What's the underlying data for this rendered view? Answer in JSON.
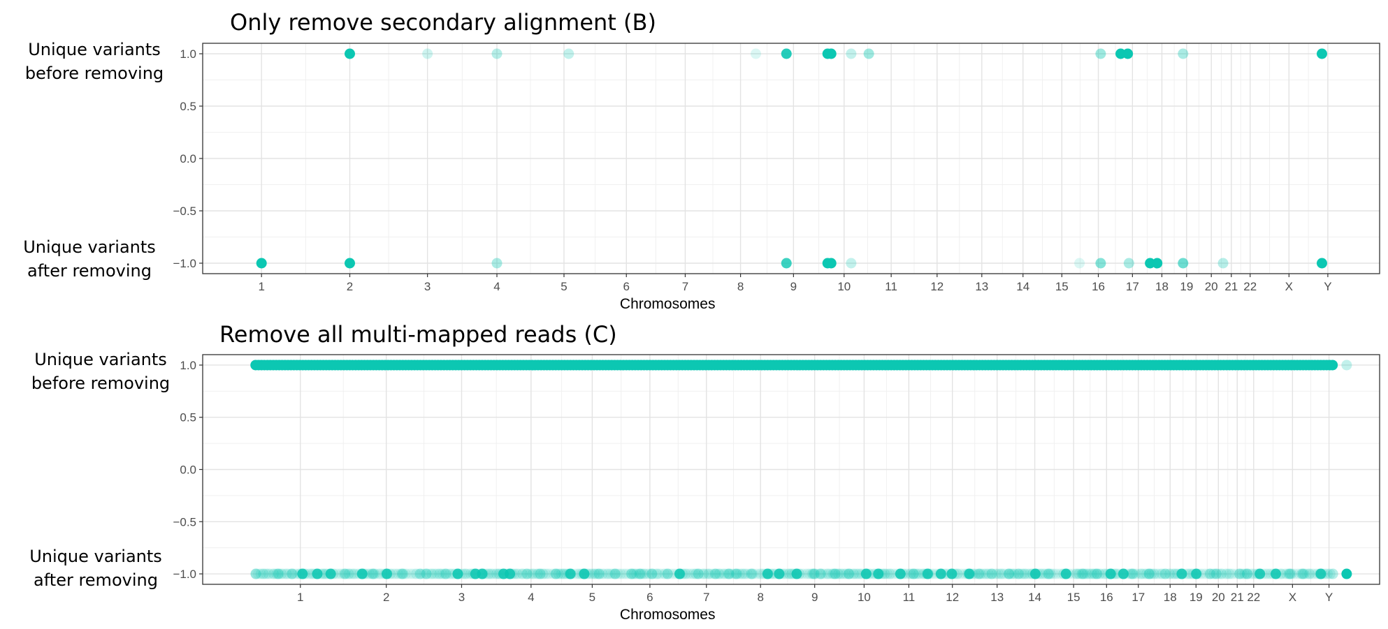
{
  "chart_data": [
    {
      "type": "scatter",
      "title": "Only remove secondary alignment (B)",
      "xlabel": "Chromosomes",
      "ylabel_top": [
        "Unique variants",
        "before removing"
      ],
      "ylabel_bottom": [
        "Unique variants",
        "after removing"
      ],
      "ylim": [
        -1.1,
        1.1
      ],
      "yticks": [
        "1.0",
        "0.5",
        "0.0",
        "−0.5",
        "−1.0"
      ],
      "ytick_values": [
        1.0,
        0.5,
        0.0,
        -0.5,
        -1.0
      ],
      "xticks": [
        "1",
        "2",
        "3",
        "4",
        "5",
        "6",
        "7",
        "8",
        "9",
        "10",
        "11",
        "12",
        "13",
        "14",
        "15",
        "16",
        "17",
        "18",
        "19",
        "20",
        "21",
        "22",
        "X",
        "Y"
      ],
      "xtick_values": [
        0.05,
        0.125,
        0.191,
        0.25,
        0.307,
        0.36,
        0.41,
        0.457,
        0.502,
        0.545,
        0.585,
        0.624,
        0.662,
        0.697,
        0.73,
        0.761,
        0.79,
        0.815,
        0.836,
        0.857,
        0.874,
        0.89,
        0.923,
        0.956
      ],
      "grid": true,
      "point_color": "#0cc7b2",
      "series": [
        {
          "y": 1,
          "points": [
            [
              0.125,
              1.0
            ],
            [
              0.191,
              0.2
            ],
            [
              0.25,
              0.3
            ],
            [
              0.311,
              0.25
            ],
            [
              0.47,
              0.15
            ],
            [
              0.496,
              0.9
            ],
            [
              0.531,
              1.0
            ],
            [
              0.534,
              1.0
            ],
            [
              0.551,
              0.25
            ],
            [
              0.566,
              0.4
            ],
            [
              0.763,
              0.4
            ],
            [
              0.78,
              1.0
            ],
            [
              0.786,
              1.0
            ],
            [
              0.833,
              0.35
            ],
            [
              0.951,
              1.0
            ]
          ]
        },
        {
          "y": -1,
          "points": [
            [
              0.05,
              1.0
            ],
            [
              0.125,
              1.0
            ],
            [
              0.25,
              0.35
            ],
            [
              0.496,
              0.8
            ],
            [
              0.531,
              1.0
            ],
            [
              0.534,
              1.0
            ],
            [
              0.551,
              0.25
            ],
            [
              0.745,
              0.15
            ],
            [
              0.763,
              0.5
            ],
            [
              0.787,
              0.35
            ],
            [
              0.805,
              1.0
            ],
            [
              0.811,
              1.0
            ],
            [
              0.833,
              0.6
            ],
            [
              0.867,
              0.3
            ],
            [
              0.951,
              1.0
            ]
          ]
        }
      ]
    },
    {
      "type": "scatter",
      "title": "Remove all multi-mapped reads (C)",
      "xlabel": "Chromosomes",
      "ylabel_top": [
        "Unique variants",
        "before removing"
      ],
      "ylabel_bottom": [
        "Unique variants",
        "after removing"
      ],
      "ylim": [
        -1.1,
        1.1
      ],
      "yticks": [
        "1.0",
        "0.5",
        "0.0",
        "−0.5",
        "−1.0"
      ],
      "ytick_values": [
        1.0,
        0.5,
        0.0,
        -0.5,
        -1.0
      ],
      "xticks": [
        "1",
        "2",
        "3",
        "4",
        "5",
        "6",
        "7",
        "8",
        "9",
        "10",
        "11",
        "12",
        "13",
        "14",
        "15",
        "16",
        "17",
        "18",
        "19",
        "20",
        "21",
        "22",
        "X",
        "Y"
      ],
      "xtick_values": [
        0.083,
        0.156,
        0.22,
        0.279,
        0.331,
        0.38,
        0.428,
        0.474,
        0.52,
        0.562,
        0.6,
        0.637,
        0.675,
        0.707,
        0.74,
        0.768,
        0.795,
        0.822,
        0.844,
        0.863,
        0.879,
        0.893,
        0.926,
        0.957
      ],
      "grid": true,
      "point_color": "#0cc7b2",
      "series": [
        {
          "y": 1,
          "dense_band": [
            0.045,
            0.96
          ],
          "faint_points": [
            [
              0.972,
              0.25
            ]
          ]
        },
        {
          "y": -1,
          "dense_band": [
            0.045,
            0.96
          ],
          "solid_points": [
            [
              0.972,
              1.0
            ]
          ]
        }
      ]
    }
  ]
}
